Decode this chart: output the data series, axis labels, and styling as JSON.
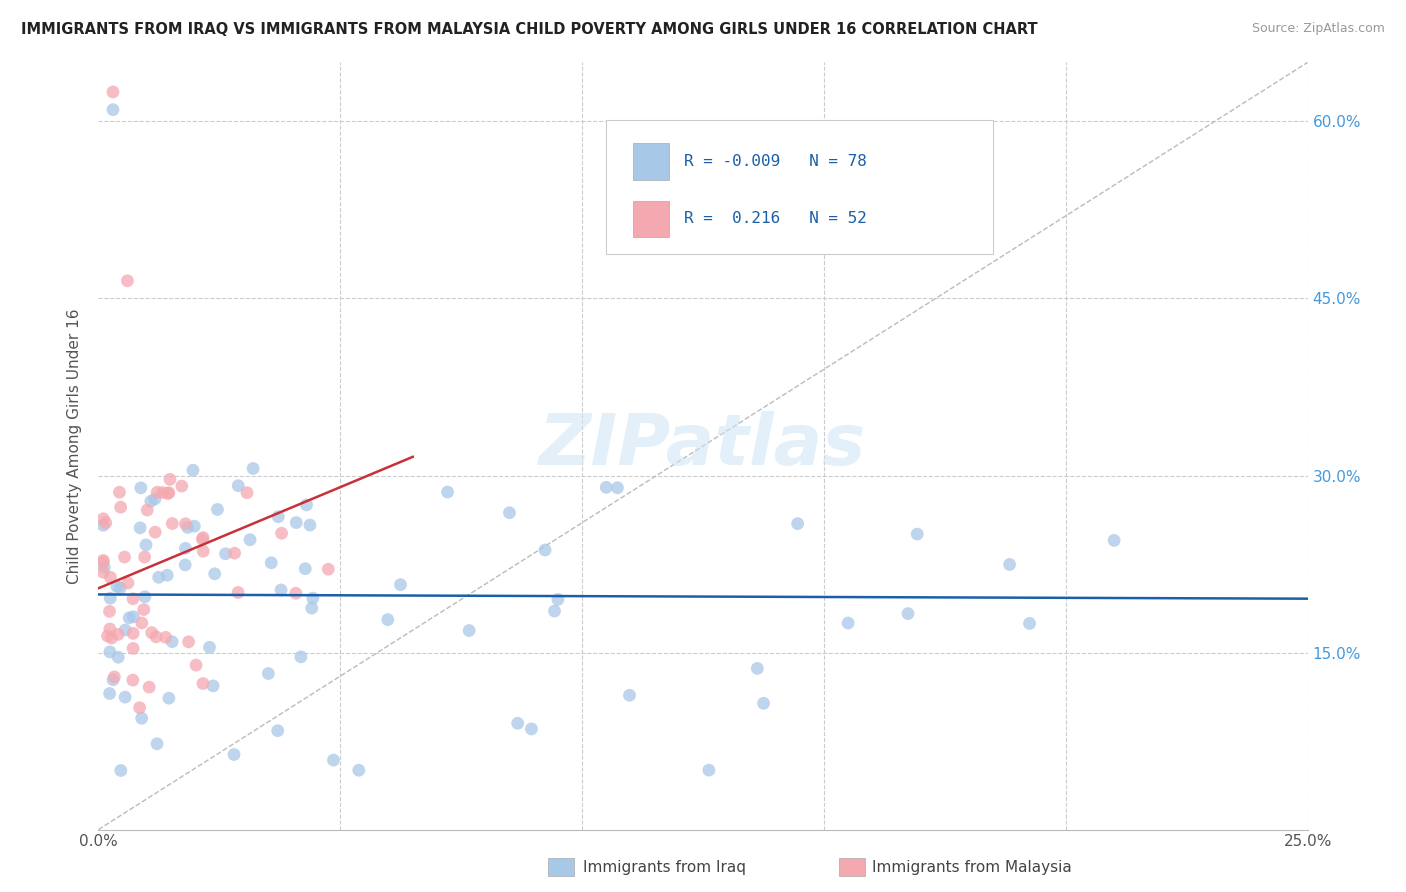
{
  "title": "IMMIGRANTS FROM IRAQ VS IMMIGRANTS FROM MALAYSIA CHILD POVERTY AMONG GIRLS UNDER 16 CORRELATION CHART",
  "source": "Source: ZipAtlas.com",
  "ylabel": "Child Poverty Among Girls Under 16",
  "xlim": [
    0.0,
    0.25
  ],
  "ylim": [
    0.0,
    0.65
  ],
  "iraq_color": "#a8c8e8",
  "malaysia_color": "#f4a8b0",
  "iraq_line_color": "#1a5fa8",
  "malaysia_line_color": "#c8303a",
  "iraq_R": -0.009,
  "iraq_N": 78,
  "malaysia_R": 0.216,
  "malaysia_N": 52,
  "watermark": "ZIPatlas",
  "legend_iraq": "Immigrants from Iraq",
  "legend_malaysia": "Immigrants from Malaysia",
  "right_tick_color": "#4499dd",
  "grid_color": "#cccccc",
  "diag_color": "#bbbbbb"
}
